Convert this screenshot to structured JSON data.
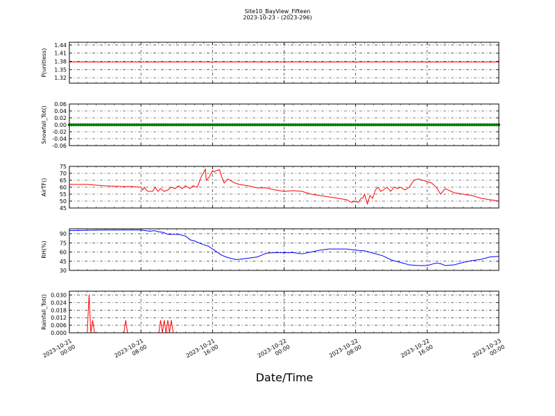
{
  "title": "Site10_BayView_Fifteen",
  "subtitle": "2023-10-23 - (2023-296)",
  "xlabel": "Date/Time",
  "chart_data": {
    "type": "line",
    "x_range": [
      "2023-10-21 00:00",
      "2023-10-23 00:00"
    ],
    "x_ticks": [
      {
        "line1": "2023-10-21",
        "line2": "00:00"
      },
      {
        "line1": "2023-10-21",
        "line2": "08:00"
      },
      {
        "line1": "2023-10-21",
        "line2": "16:00"
      },
      {
        "line1": "2023-10-22",
        "line2": "00:00"
      },
      {
        "line1": "2023-10-22",
        "line2": "08:00"
      },
      {
        "line1": "2023-10-22",
        "line2": "16:00"
      },
      {
        "line1": "2023-10-23",
        "line2": "00:00"
      }
    ],
    "grid": true,
    "panels": [
      {
        "ylabel": "P(unitless)",
        "color": "#ff0000",
        "ylim": [
          1.3,
          1.45
        ],
        "yticks": [
          1.32,
          1.35,
          1.38,
          1.41,
          1.44
        ],
        "tick_decimals": 2,
        "series": {
          "x_hours": [
            0,
            48
          ],
          "values": [
            1.378,
            1.378
          ]
        }
      },
      {
        "ylabel": "Snowfall_Tot()",
        "color": "#008000",
        "ylim": [
          -0.06,
          0.06
        ],
        "yticks": [
          -0.06,
          -0.04,
          -0.02,
          0.0,
          0.02,
          0.04,
          0.06
        ],
        "tick_decimals": 2,
        "marker": true,
        "series": {
          "x_hours": [
            0,
            48
          ],
          "values": [
            0,
            0
          ]
        }
      },
      {
        "ylabel": "AirTF()",
        "color": "#ff0000",
        "ylim": [
          45,
          75
        ],
        "yticks": [
          45,
          50,
          55,
          60,
          65,
          70,
          75
        ],
        "tick_decimals": 0,
        "series": {
          "x_hours": [
            0,
            2,
            4,
            6,
            7,
            8,
            8.2,
            8.4,
            8.6,
            8.8,
            9.3,
            9.6,
            9.9,
            10.2,
            10.6,
            11,
            11.4,
            11.8,
            12.2,
            12.6,
            13,
            13.5,
            13.8,
            14.3,
            14.7,
            15.2,
            15.3,
            15.6,
            16,
            16.2,
            16.4,
            16.8,
            17,
            17.3,
            17.7,
            18.2,
            18.5,
            19,
            20,
            21,
            22,
            23,
            24,
            25,
            26,
            27,
            28,
            29,
            30,
            31,
            31.5,
            32,
            32.3,
            32.6,
            32.8,
            33,
            33.3,
            33.6,
            33.9,
            34.2,
            34.5,
            34.8,
            35.1,
            35.5,
            35.9,
            36.3,
            36.7,
            37,
            37.5,
            38,
            38.5,
            39,
            39.5,
            40,
            40.5,
            41,
            41.5,
            42,
            43,
            44,
            45,
            46,
            47,
            48
          ],
          "values": [
            62,
            62,
            61,
            60.5,
            60.5,
            60,
            58,
            60,
            58,
            57,
            57,
            60,
            57,
            59,
            57,
            58,
            60,
            59,
            61,
            59,
            61,
            59,
            61,
            60,
            67,
            73,
            65,
            67,
            72,
            71,
            72,
            72.5,
            68,
            63,
            66,
            64,
            63,
            62,
            61,
            59.5,
            59.5,
            58,
            57,
            57.5,
            57,
            55,
            54,
            53,
            52,
            51,
            49,
            50,
            49,
            52,
            52,
            55,
            48,
            54,
            52,
            58,
            60,
            57,
            58,
            60,
            57,
            60,
            59,
            60,
            58,
            60,
            65,
            66,
            65,
            64,
            63,
            60,
            55,
            59,
            56,
            55,
            54,
            52,
            51,
            50
          ]
        }
      },
      {
        "ylabel": "RH(%)",
        "color": "#0000ff",
        "ylim": [
          30,
          98
        ],
        "yticks": [
          30,
          45,
          60,
          75,
          90
        ],
        "tick_decimals": 0,
        "series": {
          "x_hours": [
            0,
            4,
            8,
            8.5,
            9,
            9.5,
            10,
            10.5,
            11,
            12,
            12.5,
            13,
            13.5,
            14,
            14.5,
            15,
            15.5,
            16,
            16.5,
            17,
            17.5,
            18,
            18.5,
            19,
            20,
            21,
            22,
            23,
            24,
            25,
            26,
            27,
            28,
            29,
            30,
            31,
            32,
            33,
            34,
            35,
            36,
            37,
            38,
            39,
            40,
            40.5,
            41,
            41.5,
            42,
            43,
            44,
            45,
            46,
            47,
            48
          ],
          "values": [
            95,
            96,
            96,
            95,
            94,
            95,
            93,
            92,
            89,
            89,
            88,
            86,
            80,
            78,
            75,
            72,
            70,
            65,
            60,
            55,
            52,
            50,
            48,
            48,
            50,
            52,
            58,
            59,
            59,
            59,
            57,
            60,
            63,
            65,
            65,
            65,
            63,
            62,
            58,
            54,
            47,
            43,
            39,
            38,
            38,
            40,
            42,
            41,
            38,
            39,
            43,
            46,
            48,
            52,
            53
          ]
        }
      },
      {
        "ylabel": "Rainfall_Tot()",
        "color": "#ff0000",
        "ylim": [
          0,
          0.033
        ],
        "yticks": [
          0.0,
          0.006,
          0.012,
          0.018,
          0.024,
          0.03
        ],
        "tick_decimals": 3,
        "series": {
          "x_hours": [
            0,
            2,
            2.2,
            2.4,
            2.6,
            2.8,
            3.0,
            3.2,
            6.1,
            6.3,
            6.5,
            10.0,
            10.2,
            10.4,
            10.6,
            10.8,
            11.0,
            11.2,
            11.4,
            11.6,
            11.8,
            12.0,
            48
          ],
          "values": [
            0,
            0,
            0.03,
            0,
            0.01,
            0,
            0,
            0,
            0,
            0.01,
            0,
            0,
            0.01,
            0,
            0.01,
            0,
            0.01,
            0,
            0.01,
            0,
            0,
            0,
            0
          ]
        }
      }
    ]
  }
}
